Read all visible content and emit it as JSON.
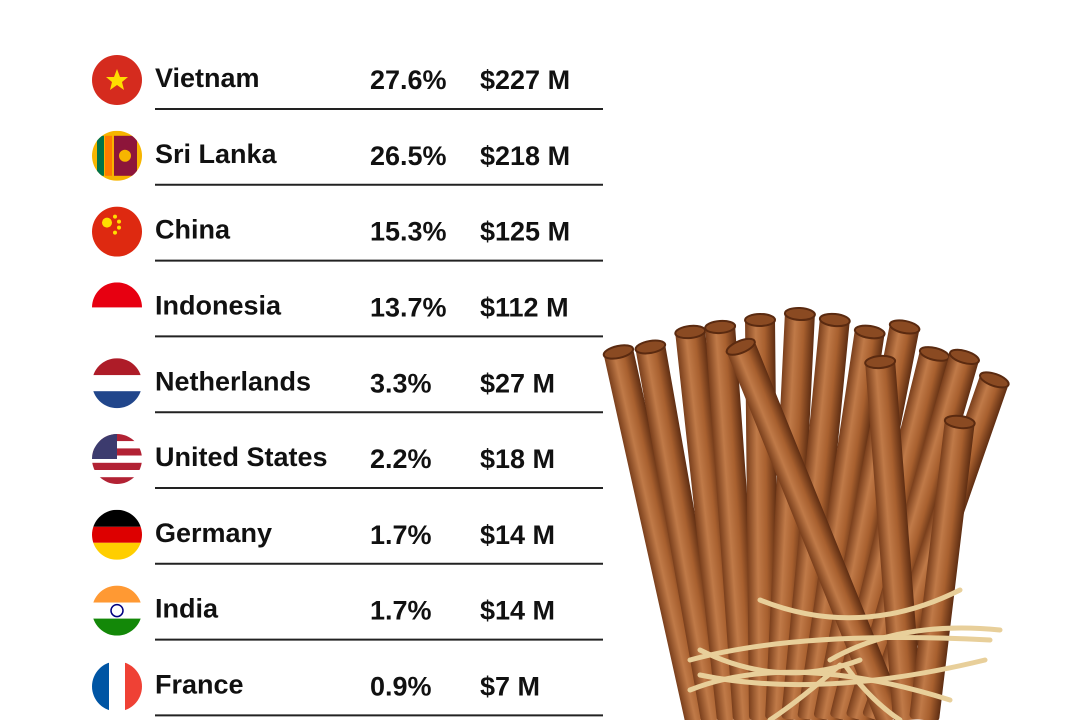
{
  "table": {
    "rows": [
      [
        "Vietnam",
        "27.6%",
        "$227 M"
      ],
      [
        "Sri Lanka",
        "26.5%",
        "$218 M"
      ],
      [
        "China",
        "15.3%",
        "$125 M"
      ],
      [
        "Indonesia",
        "13.7%",
        "$112 M"
      ],
      [
        "Netherlands",
        "3.3%",
        "$27 M"
      ],
      [
        "United States",
        "2.2%",
        "$18 M"
      ],
      [
        "Germany",
        "1.7%",
        "$14 M"
      ],
      [
        "India",
        "1.7%",
        "$14 M"
      ],
      [
        "France",
        "0.9%",
        "$7 M"
      ]
    ]
  }
}
